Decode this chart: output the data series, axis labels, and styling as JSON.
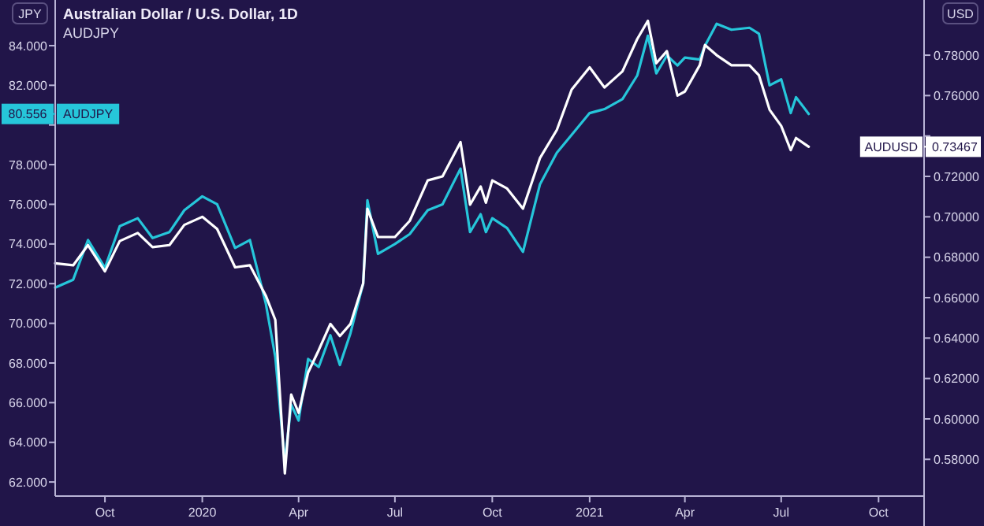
{
  "chart_data": {
    "type": "line",
    "title": "Australian Dollar / U.S. Dollar, 1D",
    "subtitle": "AUDJPY",
    "ylabel": "JPY",
    "y2label": "USD",
    "x": [
      "2019-08-15",
      "2019-09-01",
      "2019-09-15",
      "2019-10-01",
      "2019-10-15",
      "2019-11-01",
      "2019-11-15",
      "2019-12-01",
      "2019-12-15",
      "2020-01-01",
      "2020-01-15",
      "2020-02-01",
      "2020-02-15",
      "2020-03-01",
      "2020-03-10",
      "2020-03-19",
      "2020-03-25",
      "2020-04-01",
      "2020-04-10",
      "2020-04-20",
      "2020-05-01",
      "2020-05-10",
      "2020-05-20",
      "2020-06-01",
      "2020-06-05",
      "2020-06-15",
      "2020-07-01",
      "2020-07-15",
      "2020-08-01",
      "2020-08-15",
      "2020-09-01",
      "2020-09-10",
      "2020-09-20",
      "2020-09-25",
      "2020-10-01",
      "2020-10-15",
      "2020-10-30",
      "2020-11-15",
      "2020-12-01",
      "2020-12-15",
      "2021-01-01",
      "2021-01-15",
      "2021-02-01",
      "2021-02-15",
      "2021-02-25",
      "2021-03-05",
      "2021-03-15",
      "2021-03-25",
      "2021-04-01",
      "2021-04-15",
      "2021-04-20",
      "2021-05-01",
      "2021-05-15",
      "2021-06-01",
      "2021-06-10",
      "2021-06-20",
      "2021-07-01",
      "2021-07-10",
      "2021-07-15",
      "2021-07-27"
    ],
    "series": [
      {
        "name": "AUDJPY",
        "color": "#26c6da",
        "values": [
          71.8,
          72.2,
          74.2,
          72.8,
          74.9,
          75.3,
          74.3,
          74.6,
          75.7,
          76.4,
          76.0,
          73.8,
          74.2,
          71.0,
          68.3,
          63.0,
          65.9,
          65.1,
          68.2,
          67.8,
          69.4,
          67.9,
          69.5,
          72.0,
          76.2,
          73.5,
          74.0,
          74.5,
          75.7,
          76.0,
          77.8,
          74.6,
          75.5,
          74.6,
          75.3,
          74.8,
          73.6,
          77.0,
          78.6,
          79.5,
          80.6,
          80.8,
          81.3,
          82.5,
          84.5,
          82.6,
          83.5,
          83.0,
          83.4,
          83.3,
          84.0,
          85.1,
          84.8,
          84.9,
          84.6,
          82.0,
          82.3,
          80.6,
          81.4,
          80.556
        ]
      },
      {
        "name": "AUDUSD",
        "color": "#ffffff",
        "axis": "y2",
        "values": [
          0.677,
          0.676,
          0.686,
          0.673,
          0.688,
          0.692,
          0.685,
          0.686,
          0.696,
          0.7,
          0.694,
          0.675,
          0.676,
          0.661,
          0.649,
          0.573,
          0.612,
          0.603,
          0.623,
          0.634,
          0.647,
          0.641,
          0.647,
          0.667,
          0.704,
          0.69,
          0.69,
          0.698,
          0.718,
          0.72,
          0.737,
          0.706,
          0.715,
          0.707,
          0.718,
          0.714,
          0.704,
          0.729,
          0.743,
          0.763,
          0.774,
          0.764,
          0.772,
          0.788,
          0.797,
          0.776,
          0.782,
          0.76,
          0.762,
          0.775,
          0.785,
          0.78,
          0.775,
          0.775,
          0.77,
          0.753,
          0.745,
          0.733,
          0.739,
          0.73467
        ]
      }
    ],
    "xlim": [
      "2019-08-15",
      "2021-11-13"
    ],
    "xticks": [
      {
        "value": "2019-10-01",
        "label": "Oct"
      },
      {
        "value": "2020-01-01",
        "label": "2020"
      },
      {
        "value": "2020-04-01",
        "label": "Apr"
      },
      {
        "value": "2020-07-01",
        "label": "Jul"
      },
      {
        "value": "2020-10-01",
        "label": "Oct"
      },
      {
        "value": "2021-01-01",
        "label": "2021"
      },
      {
        "value": "2021-04-01",
        "label": "Apr"
      },
      {
        "value": "2021-07-01",
        "label": "Jul"
      },
      {
        "value": "2021-10-01",
        "label": "Oct"
      }
    ],
    "ylim": [
      61.29,
      86.3
    ],
    "yticks": [
      {
        "value": 62,
        "label": "62.000"
      },
      {
        "value": 64,
        "label": "64.000"
      },
      {
        "value": 66,
        "label": "66.000"
      },
      {
        "value": 68,
        "label": "68.000"
      },
      {
        "value": 70,
        "label": "70.000"
      },
      {
        "value": 72,
        "label": "72.000"
      },
      {
        "value": 74,
        "label": "74.000"
      },
      {
        "value": 76,
        "label": "76.000"
      },
      {
        "value": 78,
        "label": "78.000"
      },
      {
        "value": 80,
        "label": null
      },
      {
        "value": 80.556,
        "label": "80.556"
      },
      {
        "value": 82,
        "label": "82.000"
      },
      {
        "value": 84,
        "label": "84.000"
      }
    ],
    "y2lim": [
      0.5618,
      0.8073
    ],
    "y2ticks": [
      {
        "value": 0.58,
        "label": "0.58000"
      },
      {
        "value": 0.6,
        "label": "0.60000"
      },
      {
        "value": 0.62,
        "label": "0.62000"
      },
      {
        "value": 0.64,
        "label": "0.64000"
      },
      {
        "value": 0.66,
        "label": "0.66000"
      },
      {
        "value": 0.68,
        "label": "0.68000"
      },
      {
        "value": 0.7,
        "label": "0.70000"
      },
      {
        "value": 0.72,
        "label": "0.72000"
      },
      {
        "value": 0.73467,
        "label": "0.73467"
      },
      {
        "value": 0.74,
        "label": null
      },
      {
        "value": 0.76,
        "label": "0.76000"
      },
      {
        "value": 0.78,
        "label": "0.78000"
      }
    ],
    "grid": false,
    "legend": "left",
    "marker": "none",
    "line_style": "solid"
  }
}
